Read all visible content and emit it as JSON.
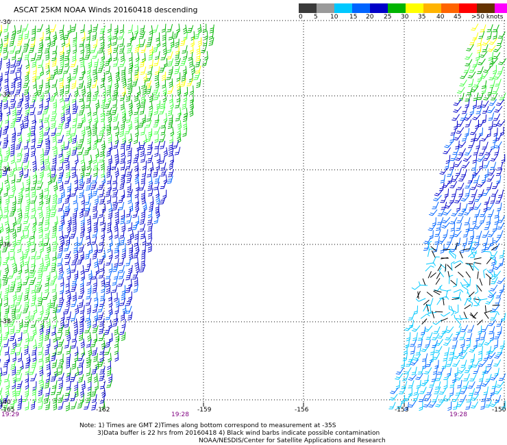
{
  "title": "ASCAT 25KM NOAA Winds 20160418 descending",
  "scale": {
    "colors": [
      "#3a3a3a",
      "#9a9a9a",
      "#00c8ff",
      "#0064ff",
      "#0000c8",
      "#00b400",
      "#ffff00",
      "#ffb400",
      "#ff6400",
      "#ff0000",
      "#643200",
      "#ff00ff",
      "#8000c8"
    ],
    "labels": [
      "0",
      "5",
      "10",
      "15",
      "20",
      "25",
      "30",
      "35",
      "40",
      "45",
      ">50 knots"
    ]
  },
  "lat_labels": [
    "-30",
    "-32",
    "-34",
    "-36",
    "-38",
    "-40"
  ],
  "lon_labels": [
    "-165",
    "-162",
    "-159",
    "-156",
    "-153",
    "-150"
  ],
  "time_labels": [
    "19:29",
    "19:28",
    "19:28"
  ],
  "notes": {
    "line1": "Note: 1) Times are GMT 2)Times along bottom correspond to measurement at -35S",
    "line2": "3)Data buffer is 22 hrs from 20160418 4) Black wind barbs indicate possible contamination",
    "line3": "NOAA/NESDIS/Center for Satellite Applications and Research"
  },
  "colors": {
    "green": "#00b400",
    "bright_green": "#40ff40",
    "blue": "#0000c8",
    "mid_blue": "#0064ff",
    "cyan": "#00c8ff",
    "yellow": "#ffff00",
    "black": "#000000"
  }
}
